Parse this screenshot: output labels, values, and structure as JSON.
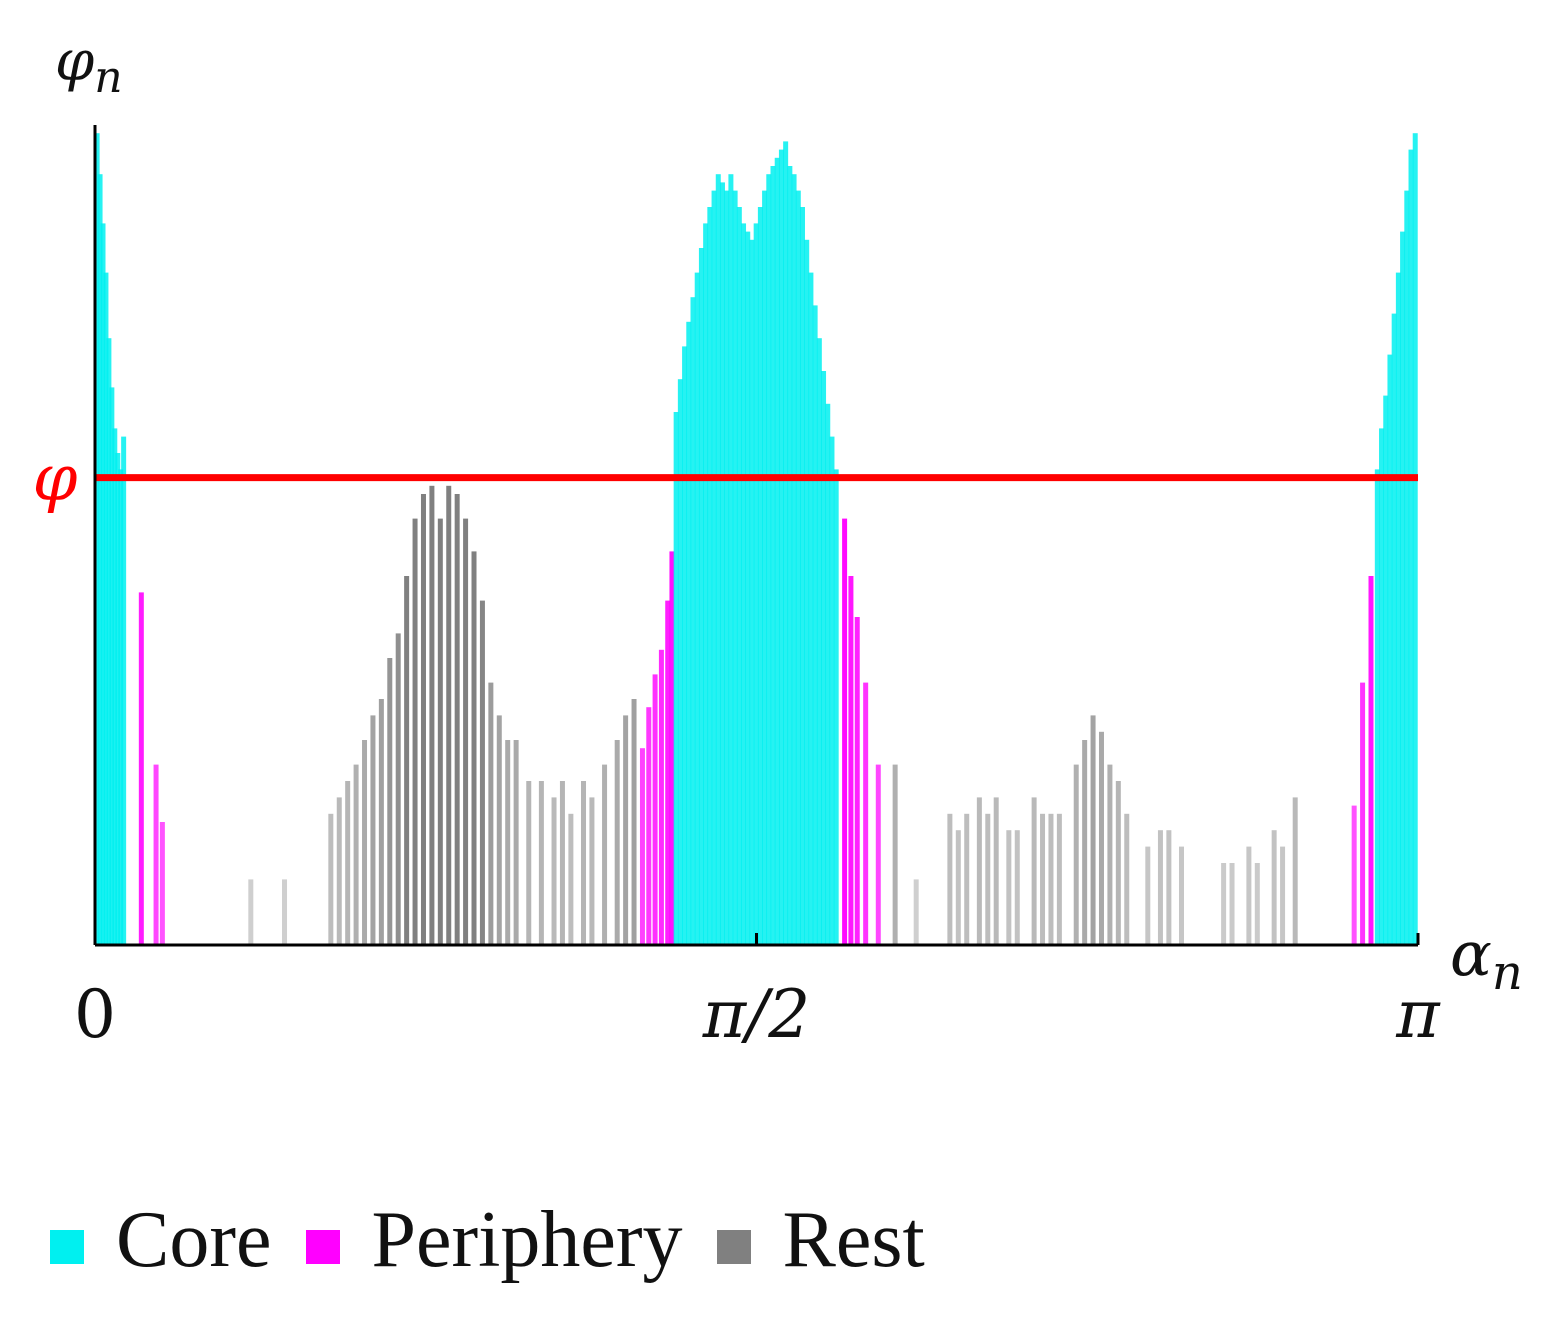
{
  "chart_data": {
    "type": "bar",
    "title": "",
    "xlabel": "α",
    "xlabel_sub": "n",
    "ylabel": "φ",
    "ylabel_sub": "n",
    "xlim": [
      0,
      3.14159
    ],
    "ylim": [
      0,
      1.0
    ],
    "x_ticks": [
      {
        "value": 0,
        "label": "0"
      },
      {
        "value": 1.5708,
        "label": "π/2"
      },
      {
        "value": 3.14159,
        "label": "π"
      }
    ],
    "threshold": {
      "value": 0.57,
      "label": "φ",
      "color": "#ff0000"
    },
    "colors": {
      "core": "#00f0f0",
      "periphery": "#ff00ff",
      "rest": "#808080"
    },
    "legend": [
      {
        "key": "core",
        "label": "Core",
        "color": "#00f0f0"
      },
      {
        "key": "periphery",
        "label": "Periphery",
        "color": "#ff00ff"
      },
      {
        "key": "rest",
        "label": "Rest",
        "color": "#808080"
      }
    ],
    "series": [
      {
        "name": "Core",
        "key": "core",
        "points": [
          [
            0.005,
            0.99
          ],
          [
            0.012,
            0.94
          ],
          [
            0.019,
            0.88
          ],
          [
            0.026,
            0.82
          ],
          [
            0.033,
            0.74
          ],
          [
            0.04,
            0.68
          ],
          [
            0.047,
            0.63
          ],
          [
            0.054,
            0.6
          ],
          [
            0.061,
            0.58
          ],
          [
            0.068,
            0.62
          ],
          [
            1.38,
            0.65
          ],
          [
            1.39,
            0.69
          ],
          [
            1.4,
            0.73
          ],
          [
            1.41,
            0.76
          ],
          [
            1.42,
            0.79
          ],
          [
            1.43,
            0.82
          ],
          [
            1.44,
            0.85
          ],
          [
            1.45,
            0.88
          ],
          [
            1.46,
            0.9
          ],
          [
            1.47,
            0.92
          ],
          [
            1.48,
            0.94
          ],
          [
            1.49,
            0.93
          ],
          [
            1.5,
            0.92
          ],
          [
            1.51,
            0.94
          ],
          [
            1.52,
            0.92
          ],
          [
            1.53,
            0.9
          ],
          [
            1.54,
            0.88
          ],
          [
            1.55,
            0.87
          ],
          [
            1.56,
            0.86
          ],
          [
            1.57,
            0.88
          ],
          [
            1.58,
            0.9
          ],
          [
            1.59,
            0.92
          ],
          [
            1.6,
            0.94
          ],
          [
            1.61,
            0.95
          ],
          [
            1.62,
            0.96
          ],
          [
            1.63,
            0.97
          ],
          [
            1.64,
            0.98
          ],
          [
            1.65,
            0.95
          ],
          [
            1.66,
            0.94
          ],
          [
            1.67,
            0.92
          ],
          [
            1.68,
            0.9
          ],
          [
            1.69,
            0.86
          ],
          [
            1.7,
            0.82
          ],
          [
            1.71,
            0.78
          ],
          [
            1.72,
            0.74
          ],
          [
            1.73,
            0.7
          ],
          [
            1.74,
            0.66
          ],
          [
            1.75,
            0.62
          ],
          [
            1.76,
            0.58
          ],
          [
            3.045,
            0.58
          ],
          [
            3.055,
            0.63
          ],
          [
            3.065,
            0.67
          ],
          [
            3.075,
            0.72
          ],
          [
            3.085,
            0.77
          ],
          [
            3.095,
            0.82
          ],
          [
            3.105,
            0.87
          ],
          [
            3.115,
            0.92
          ],
          [
            3.125,
            0.97
          ],
          [
            3.135,
            0.99
          ]
        ]
      },
      {
        "name": "Periphery",
        "key": "periphery",
        "points": [
          [
            0.11,
            0.43
          ],
          [
            0.145,
            0.22
          ],
          [
            0.16,
            0.15
          ],
          [
            1.3,
            0.24
          ],
          [
            1.315,
            0.29
          ],
          [
            1.33,
            0.33
          ],
          [
            1.345,
            0.36
          ],
          [
            1.36,
            0.42
          ],
          [
            1.37,
            0.48
          ],
          [
            1.78,
            0.52
          ],
          [
            1.795,
            0.45
          ],
          [
            1.81,
            0.4
          ],
          [
            1.83,
            0.32
          ],
          [
            1.86,
            0.22
          ],
          [
            2.99,
            0.17
          ],
          [
            3.01,
            0.32
          ],
          [
            3.03,
            0.45
          ]
        ]
      },
      {
        "name": "Rest",
        "key": "rest",
        "points": [
          [
            0.37,
            0.08
          ],
          [
            0.45,
            0.08
          ],
          [
            0.56,
            0.16
          ],
          [
            0.58,
            0.18
          ],
          [
            0.6,
            0.2
          ],
          [
            0.62,
            0.22
          ],
          [
            0.64,
            0.25
          ],
          [
            0.66,
            0.28
          ],
          [
            0.68,
            0.3
          ],
          [
            0.7,
            0.35
          ],
          [
            0.72,
            0.38
          ],
          [
            0.74,
            0.45
          ],
          [
            0.76,
            0.52
          ],
          [
            0.78,
            0.55
          ],
          [
            0.8,
            0.56
          ],
          [
            0.82,
            0.52
          ],
          [
            0.84,
            0.56
          ],
          [
            0.86,
            0.55
          ],
          [
            0.88,
            0.52
          ],
          [
            0.9,
            0.48
          ],
          [
            0.92,
            0.42
          ],
          [
            0.94,
            0.32
          ],
          [
            0.96,
            0.28
          ],
          [
            0.98,
            0.25
          ],
          [
            1.0,
            0.25
          ],
          [
            1.03,
            0.2
          ],
          [
            1.06,
            0.2
          ],
          [
            1.09,
            0.18
          ],
          [
            1.11,
            0.2
          ],
          [
            1.13,
            0.16
          ],
          [
            1.16,
            0.2
          ],
          [
            1.18,
            0.18
          ],
          [
            1.21,
            0.22
          ],
          [
            1.24,
            0.25
          ],
          [
            1.26,
            0.28
          ],
          [
            1.28,
            0.3
          ],
          [
            1.9,
            0.22
          ],
          [
            1.95,
            0.08
          ],
          [
            2.03,
            0.16
          ],
          [
            2.05,
            0.14
          ],
          [
            2.07,
            0.16
          ],
          [
            2.1,
            0.18
          ],
          [
            2.12,
            0.16
          ],
          [
            2.14,
            0.18
          ],
          [
            2.17,
            0.14
          ],
          [
            2.19,
            0.14
          ],
          [
            2.23,
            0.18
          ],
          [
            2.25,
            0.16
          ],
          [
            2.27,
            0.16
          ],
          [
            2.29,
            0.16
          ],
          [
            2.33,
            0.22
          ],
          [
            2.35,
            0.25
          ],
          [
            2.37,
            0.28
          ],
          [
            2.39,
            0.26
          ],
          [
            2.41,
            0.22
          ],
          [
            2.43,
            0.2
          ],
          [
            2.45,
            0.16
          ],
          [
            2.5,
            0.12
          ],
          [
            2.53,
            0.14
          ],
          [
            2.55,
            0.14
          ],
          [
            2.58,
            0.12
          ],
          [
            2.68,
            0.1
          ],
          [
            2.7,
            0.1
          ],
          [
            2.74,
            0.12
          ],
          [
            2.76,
            0.1
          ],
          [
            2.8,
            0.14
          ],
          [
            2.82,
            0.12
          ],
          [
            2.85,
            0.18
          ]
        ]
      }
    ]
  }
}
